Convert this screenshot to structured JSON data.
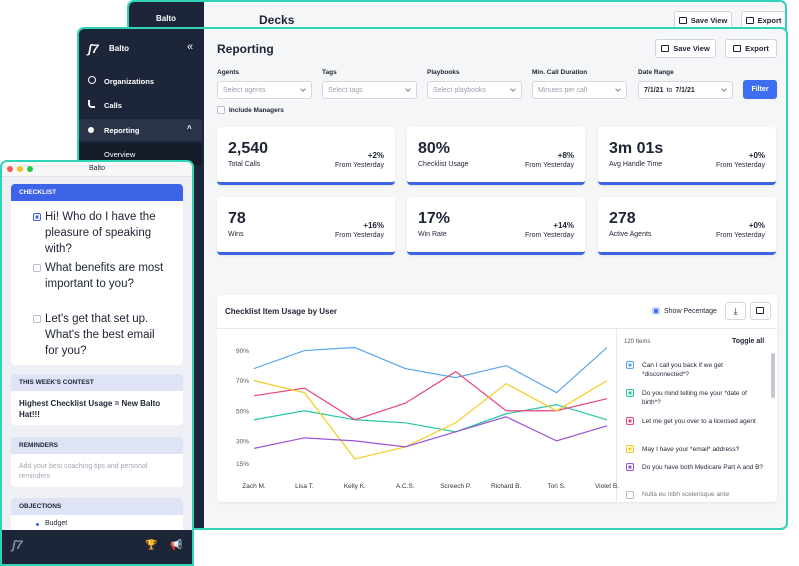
{
  "back_window": {
    "brand": "Balto",
    "title": "Decks",
    "buttons": [
      "Save View",
      "Export"
    ]
  },
  "main_window": {
    "brand": "Balto",
    "nav": [
      "Organizations",
      "Calls",
      "Reporting",
      "Overview"
    ],
    "title": "Reporting",
    "buttons": [
      "Save View",
      "Export"
    ],
    "filters": [
      {
        "label": "Agents",
        "placeholder": "Select agents"
      },
      {
        "label": "Tags",
        "placeholder": "Select tags"
      },
      {
        "label": "Playbooks",
        "placeholder": "Select playbooks"
      },
      {
        "label": "Min. Call Duration",
        "placeholder": "Minutes per call"
      }
    ],
    "date_range": {
      "label": "Date Range",
      "from": "7/1/21",
      "joiner": "to",
      "to": "7/1/21"
    },
    "filter_button": "Filter",
    "include_managers": "Include Managers",
    "stats": [
      {
        "value": "2,540",
        "label": "Total Calls",
        "change": "+2%",
        "change_label": "From Yesterday"
      },
      {
        "value": "80%",
        "label": "Checklist Usage",
        "change": "+8%",
        "change_label": "From Yesterday"
      },
      {
        "value": "3m 01s",
        "label": "Avg Handle Time",
        "change": "+0%",
        "change_label": "From Yesterday"
      },
      {
        "value": "78",
        "label": "Wins",
        "change": "+16%",
        "change_label": "From Yesterday"
      },
      {
        "value": "17%",
        "label": "Win Rate",
        "change": "+14%",
        "change_label": "From Yesterday"
      },
      {
        "value": "278",
        "label": "Active Agents",
        "change": "+0%",
        "change_label": "From Yesterday"
      }
    ]
  },
  "chart_data": {
    "type": "line",
    "title": "Checklist Item Usage by User",
    "toggle_label": "Show Pecentage",
    "categories": [
      "Zach M.",
      "Lisa T.",
      "Kelly K.",
      "A.C.S.",
      "Screech P.",
      "Richard B.",
      "Tori S.",
      "Violet B."
    ],
    "ylim": [
      4,
      97
    ],
    "yticks": [
      {
        "value": 15,
        "label": "15%"
      },
      {
        "value": 30,
        "label": "30%"
      },
      {
        "value": 50,
        "label": "50%"
      },
      {
        "value": 70,
        "label": "70%"
      },
      {
        "value": 90,
        "label": "90%"
      }
    ],
    "grid": false,
    "series": [
      {
        "name": "Can I call you back if we get *disconnected*?",
        "color": "#5aa5ec",
        "values": [
          78,
          90,
          92,
          78,
          72,
          80,
          62,
          92
        ]
      },
      {
        "name": "Do you mind telling me your *date of birth*?",
        "color": "#27c6a3",
        "values": [
          44,
          50,
          44,
          42,
          36,
          48,
          54,
          44
        ]
      },
      {
        "name": "Let me get you over to a licensed agent",
        "color": "#e5467e",
        "values": [
          60,
          65,
          44,
          55,
          76,
          50,
          50,
          58
        ]
      },
      {
        "name": "May I have your *email* address?",
        "color": "#f4cc1e",
        "values": [
          70,
          62,
          18,
          26,
          42,
          68,
          50,
          70
        ]
      },
      {
        "name": "Do you have both Medicare Part A and B?",
        "color": "#9a55d6",
        "values": [
          25,
          32,
          30,
          26,
          36,
          46,
          30,
          40
        ]
      }
    ]
  },
  "legend_panel": {
    "count": "120 Items",
    "toggle": "Toggle all",
    "unchecked_item": "Nulla eu nibh scelerisque ante"
  },
  "side_window": {
    "title": "Balto",
    "checklist_title": "CHECKLIST",
    "checklist": [
      "Hi! Who do I have the pleasure of speaking with?",
      "What benefits are most important to you?",
      "Let's get that set up. What's the best email for you?"
    ],
    "contest_title": "THIS WEEK'S CONTEST",
    "contest": "Highest Checklist Usage = New Balto Hat!!!",
    "reminders_title": "REMINDERS",
    "reminders": "Add your best coaching tips and personal reminders",
    "objections_title": "OBJECTIONS",
    "objections": [
      "Budget"
    ]
  }
}
